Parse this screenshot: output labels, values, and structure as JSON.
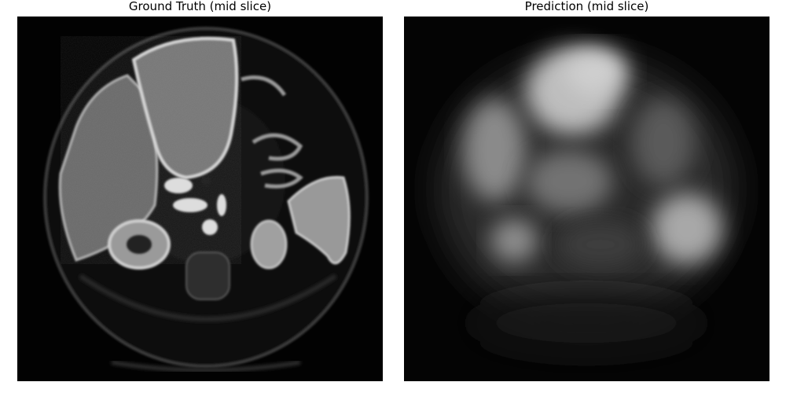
{
  "panels": [
    {
      "title": "Ground Truth (mid slice)"
    },
    {
      "title": "Prediction (mid slice)"
    }
  ]
}
